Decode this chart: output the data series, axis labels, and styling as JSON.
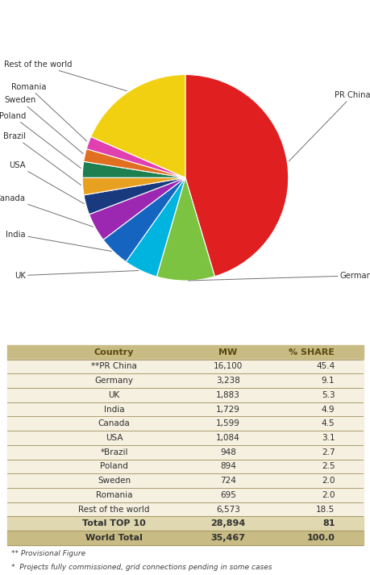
{
  "slices": [
    {
      "label": "PR China",
      "share": 45.4,
      "color": "#e02020"
    },
    {
      "label": "Germany",
      "share": 9.1,
      "color": "#7cc342"
    },
    {
      "label": "UK",
      "share": 5.3,
      "color": "#00b4e0"
    },
    {
      "label": "India",
      "share": 4.9,
      "color": "#1565c0"
    },
    {
      "label": "Canada",
      "share": 4.5,
      "color": "#9c27b0"
    },
    {
      "label": "USA",
      "share": 3.1,
      "color": "#1a3a80"
    },
    {
      "label": "Brazil",
      "share": 2.7,
      "color": "#e8a020"
    },
    {
      "label": "Poland",
      "share": 2.5,
      "color": "#1e8050"
    },
    {
      "label": "Sweden",
      "share": 2.0,
      "color": "#e07020"
    },
    {
      "label": "Romania",
      "share": 2.0,
      "color": "#e040b0"
    },
    {
      "label": "Rest of the world",
      "share": 18.5,
      "color": "#f0d010"
    }
  ],
  "table_rows": [
    {
      "country": "**PR China",
      "mw": "16,100",
      "share": "45.4"
    },
    {
      "country": "Germany",
      "mw": "3,238",
      "share": "9.1"
    },
    {
      "country": "UK",
      "mw": "1,883",
      "share": "5.3"
    },
    {
      "country": "India",
      "mw": "1,729",
      "share": "4.9"
    },
    {
      "country": "Canada",
      "mw": "1,599",
      "share": "4.5"
    },
    {
      "country": "USA",
      "mw": "1,084",
      "share": "3.1"
    },
    {
      "country": "*Brazil",
      "mw": "948",
      "share": "2.7"
    },
    {
      "country": "Poland",
      "mw": "894",
      "share": "2.5"
    },
    {
      "country": "Sweden",
      "mw": "724",
      "share": "2.0"
    },
    {
      "country": "Romania",
      "mw": "695",
      "share": "2.0"
    },
    {
      "country": "Rest of the world",
      "mw": "6,573",
      "share": "18.5"
    }
  ],
  "total_row": {
    "country": "Total TOP 10",
    "mw": "28,894",
    "share": "81"
  },
  "world_row": {
    "country": "World Total",
    "mw": "35,467",
    "share": "100.0"
  },
  "footnote1": "** Provisional Figure",
  "footnote2": "*  Projects fully commissioned, grid connections pending in some cases",
  "header_bg": "#c8bc84",
  "row_bg": "#f5f0e0",
  "total_bg": "#e0d8b0",
  "world_bg": "#c8bc84",
  "line_color": "#a09060",
  "header_text": "#5a4a10"
}
